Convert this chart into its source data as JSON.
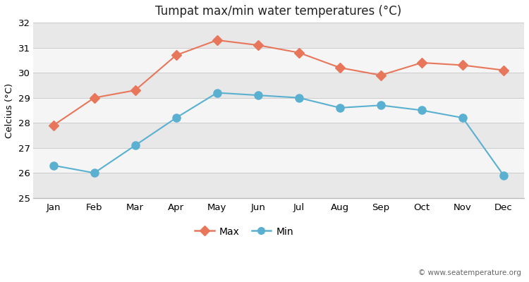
{
  "months": [
    "Jan",
    "Feb",
    "Mar",
    "Apr",
    "May",
    "Jun",
    "Jul",
    "Aug",
    "Sep",
    "Oct",
    "Nov",
    "Dec"
  ],
  "max_temps": [
    27.9,
    29.0,
    29.3,
    30.7,
    31.3,
    31.1,
    30.8,
    30.2,
    29.9,
    30.4,
    30.3,
    30.1
  ],
  "min_temps": [
    26.3,
    26.0,
    27.1,
    28.2,
    29.2,
    29.1,
    29.0,
    28.6,
    28.7,
    28.5,
    28.2,
    25.9
  ],
  "max_color": "#e8765a",
  "min_color": "#5ab0d0",
  "title": "Tumpat max/min water temperatures (°C)",
  "ylabel": "Celcius (°C)",
  "ylim": [
    25,
    32
  ],
  "yticks": [
    25,
    26,
    27,
    28,
    29,
    30,
    31,
    32
  ],
  "bg_color": "#ffffff",
  "band_colors": [
    "#e8e8e8",
    "#f5f5f5"
  ],
  "grid_color": "#cccccc",
  "copyright_text": "© www.seatemperature.org",
  "legend_max": "Max",
  "legend_min": "Min"
}
